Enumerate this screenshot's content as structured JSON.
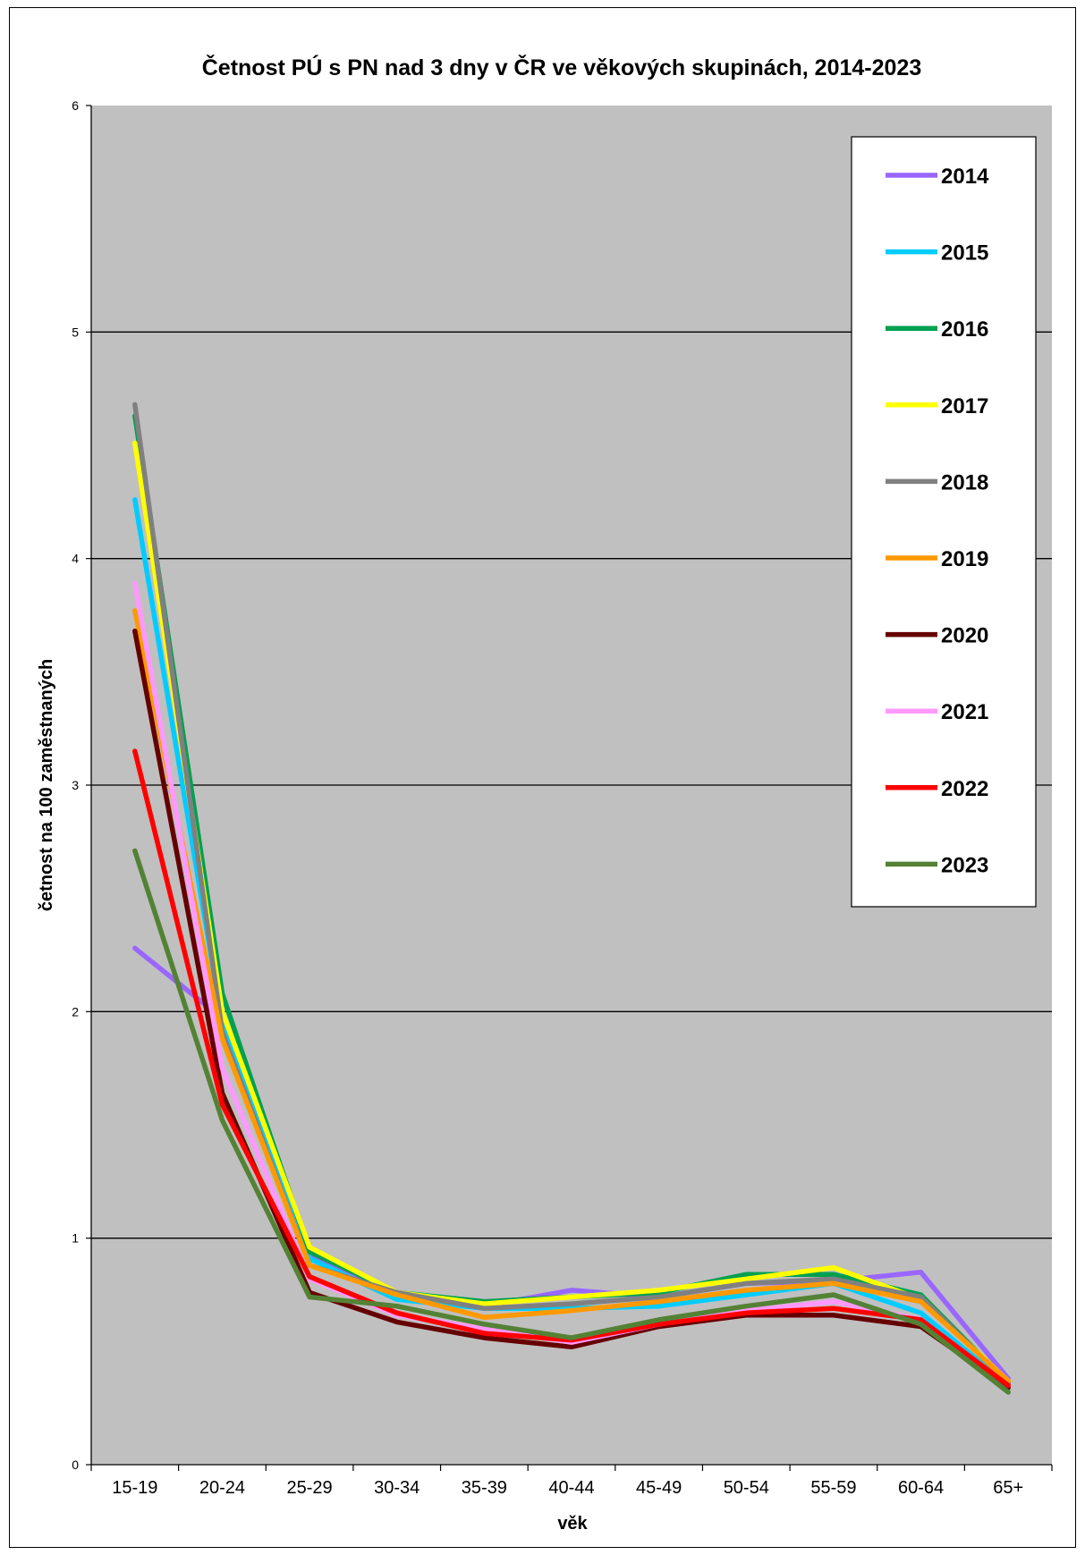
{
  "chart_data": {
    "type": "line",
    "title": "Četnost PÚ s PN nad 3 dny v ČR ve věkových skupinách, 2014-2023",
    "xlabel": "věk",
    "ylabel": "četnost na 100 zaměstnaných",
    "ylim": [
      0,
      6
    ],
    "yticks": [
      "0",
      "1",
      "2",
      "3",
      "4",
      "5",
      "6"
    ],
    "grid": true,
    "legend": "right",
    "categories": [
      "15-19",
      "20-24",
      "25-29",
      "30-34",
      "35-39",
      "40-44",
      "45-49",
      "50-54",
      "55-59",
      "60-64",
      "65+"
    ],
    "series": [
      {
        "name": "2014",
        "color": "#9966ff",
        "values": [
          2.28,
          1.97,
          0.93,
          0.76,
          0.7,
          0.77,
          0.74,
          0.8,
          0.81,
          0.85,
          0.38
        ]
      },
      {
        "name": "2015",
        "color": "#00ccff",
        "values": [
          4.26,
          1.95,
          0.91,
          0.73,
          0.69,
          0.69,
          0.7,
          0.75,
          0.8,
          0.67,
          0.35
        ]
      },
      {
        "name": "2016",
        "color": "#00a050",
        "values": [
          4.63,
          2.08,
          0.94,
          0.76,
          0.72,
          0.74,
          0.76,
          0.84,
          0.84,
          0.75,
          0.36
        ]
      },
      {
        "name": "2017",
        "color": "#ffff00",
        "values": [
          4.51,
          2.0,
          0.96,
          0.76,
          0.71,
          0.74,
          0.77,
          0.82,
          0.87,
          0.73,
          0.37
        ]
      },
      {
        "name": "2018",
        "color": "#808080",
        "values": [
          4.68,
          1.91,
          0.88,
          0.76,
          0.69,
          0.71,
          0.74,
          0.8,
          0.82,
          0.74,
          0.36
        ]
      },
      {
        "name": "2019",
        "color": "#ff9900",
        "values": [
          3.77,
          1.88,
          0.88,
          0.75,
          0.65,
          0.68,
          0.72,
          0.77,
          0.8,
          0.72,
          0.37
        ]
      },
      {
        "name": "2020",
        "color": "#660000",
        "values": [
          3.68,
          1.64,
          0.76,
          0.63,
          0.56,
          0.52,
          0.61,
          0.66,
          0.66,
          0.61,
          0.34
        ]
      },
      {
        "name": "2021",
        "color": "#ff99ff",
        "values": [
          3.89,
          1.75,
          0.82,
          0.66,
          0.6,
          0.54,
          0.62,
          0.68,
          0.72,
          0.64,
          0.35
        ]
      },
      {
        "name": "2022",
        "color": "#ff0000",
        "values": [
          3.15,
          1.59,
          0.83,
          0.67,
          0.58,
          0.55,
          0.62,
          0.67,
          0.69,
          0.64,
          0.35
        ]
      },
      {
        "name": "2023",
        "color": "#548235",
        "values": [
          2.71,
          1.52,
          0.74,
          0.7,
          0.62,
          0.56,
          0.64,
          0.7,
          0.75,
          0.62,
          0.32
        ]
      }
    ]
  }
}
